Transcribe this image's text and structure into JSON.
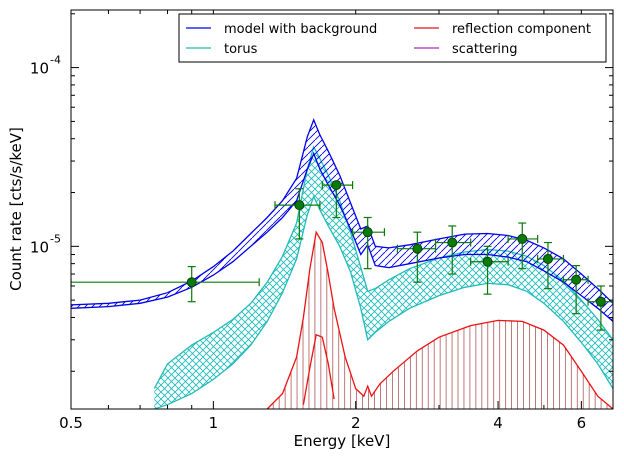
{
  "chart_data": {
    "type": "line",
    "title": "",
    "xlabel": "Energy [keV]",
    "ylabel": "Count rate [cts/s/keV]",
    "xscale": "log",
    "yscale": "log",
    "xlim": [
      0.5,
      7.0
    ],
    "ylim": [
      1.23e-06,
      0.00021
    ],
    "grid": false,
    "legend_position": "top-right",
    "x_ticks": [
      {
        "value": 0.5,
        "label": "0.5"
      },
      {
        "value": 1,
        "label": "1"
      },
      {
        "value": 2,
        "label": "2"
      },
      {
        "value": 4,
        "label": "4"
      },
      {
        "value": 6,
        "label": "6"
      }
    ],
    "y_ticks": [
      {
        "value": 1e-05,
        "label": "10",
        "exp": "-5"
      },
      {
        "value": 0.0001,
        "label": "10",
        "exp": "-4"
      }
    ],
    "legend": [
      {
        "label": "model with background",
        "color": "#0000ee"
      },
      {
        "label": "reflection component",
        "color": "#ee1111"
      },
      {
        "label": "torus",
        "color": "#22bbbb"
      },
      {
        "label": "scattering",
        "color": "#bb22bb"
      }
    ],
    "series": [
      {
        "name": "model with background",
        "color": "#0000ee",
        "x": [
          0.5,
          0.6,
          0.7,
          0.8,
          0.9,
          1.0,
          1.1,
          1.2,
          1.3,
          1.4,
          1.5,
          1.58,
          1.63,
          1.68,
          1.75,
          1.85,
          1.95,
          2.05,
          2.12,
          2.2,
          2.35,
          2.6,
          3.0,
          3.4,
          3.8,
          4.2,
          4.6,
          5.0,
          5.5,
          6.0,
          6.5,
          7.0
        ],
        "y_lo": [
          4.5e-06,
          4.6e-06,
          4.8e-06,
          5.2e-06,
          5.9e-06,
          6.9e-06,
          8.2e-06,
          1e-05,
          1.2e-05,
          1.45e-05,
          1.8e-05,
          2.7e-05,
          3.3e-05,
          2.7e-05,
          2.2e-05,
          1.7e-05,
          1.25e-05,
          9e-06,
          1.02e-05,
          7.8e-06,
          7.6e-06,
          8e-06,
          8.6e-06,
          9e-06,
          9e-06,
          8.7e-06,
          8.2e-06,
          7.3e-06,
          6.3e-06,
          5.3e-06,
          4.5e-06,
          3.8e-06
        ],
        "y_hi": [
          4.7e-06,
          4.8e-06,
          5e-06,
          5.5e-06,
          6.4e-06,
          7.7e-06,
          9.4e-06,
          1.18e-05,
          1.45e-05,
          1.8e-05,
          2.4e-05,
          4.1e-05,
          5.1e-05,
          4.2e-05,
          3.4e-05,
          2.5e-05,
          1.75e-05,
          1.25e-05,
          1.3e-05,
          1e-05,
          9.8e-06,
          1.02e-05,
          1.1e-05,
          1.17e-05,
          1.18e-05,
          1.15e-05,
          1.08e-05,
          9.8e-06,
          8.5e-06,
          7e-06,
          5.8e-06,
          4.8e-06
        ]
      },
      {
        "name": "torus",
        "color": "#22bbbb",
        "x": [
          0.75,
          0.8,
          0.9,
          1.0,
          1.1,
          1.2,
          1.3,
          1.4,
          1.5,
          1.58,
          1.63,
          1.68,
          1.75,
          1.85,
          1.95,
          2.05,
          2.12,
          2.2,
          2.35,
          2.6,
          3.0,
          3.4,
          3.8,
          4.2,
          4.6,
          5.0,
          5.5,
          6.0,
          6.5,
          7.0
        ],
        "y_lo": [
          1.23e-06,
          1.3e-06,
          1.5e-06,
          1.8e-06,
          2.2e-06,
          2.8e-06,
          3.8e-06,
          5.5e-06,
          8.5e-06,
          1.5e-05,
          1.9e-05,
          1.6e-05,
          1.3e-05,
          1e-05,
          7.2e-06,
          4.5e-06,
          3e-06,
          3.3e-06,
          3.8e-06,
          4.5e-06,
          5.3e-06,
          5.9e-06,
          6.2e-06,
          6.1e-06,
          5.6e-06,
          4.8e-06,
          3.8e-06,
          2.9e-06,
          2.2e-06,
          1.6e-06
        ],
        "y_hi": [
          1.6e-06,
          2.2e-06,
          2.8e-06,
          3.3e-06,
          3.9e-06,
          4.8e-06,
          6.3e-06,
          8.8e-06,
          1.35e-05,
          2.7e-05,
          3.6e-05,
          3.1e-05,
          2.5e-05,
          1.8e-05,
          1.2e-05,
          7.6e-06,
          5.6e-06,
          5.8e-06,
          6.5e-06,
          7.5e-06,
          8.6e-06,
          9.3e-06,
          9.6e-06,
          9.4e-06,
          8.8e-06,
          7.8e-06,
          6.4e-06,
          5e-06,
          3.9e-06,
          3e-06
        ]
      },
      {
        "name": "reflection component",
        "color": "#ee1111",
        "x": [
          1.3,
          1.4,
          1.5,
          1.55,
          1.6,
          1.65,
          1.7,
          1.75,
          1.8,
          1.9,
          2.0,
          2.08,
          2.12,
          2.16,
          2.25,
          2.4,
          2.7,
          3.0,
          3.5,
          4.0,
          4.5,
          5.0,
          5.5,
          6.0,
          6.5,
          7.0
        ],
        "y_lo": [
          null,
          null,
          null,
          1.3e-06,
          2.1e-06,
          3.2e-06,
          3.1e-06,
          2.2e-06,
          1.4e-06,
          null,
          null,
          null,
          null,
          null,
          null,
          null,
          null,
          null,
          null,
          null,
          null,
          null,
          null,
          null,
          null,
          null
        ],
        "y_hi": [
          1.23e-06,
          1.5e-06,
          2.4e-06,
          4e-06,
          7.5e-06,
          1.2e-05,
          1.05e-05,
          7e-06,
          4.5e-06,
          2.4e-06,
          1.6e-06,
          1.45e-06,
          1.65e-06,
          1.45e-06,
          1.7e-06,
          2e-06,
          2.6e-06,
          3.1e-06,
          3.6e-06,
          3.85e-06,
          3.8e-06,
          3.4e-06,
          2.8e-06,
          2e-06,
          1.45e-06,
          1.23e-06
        ]
      },
      {
        "name": "scattering",
        "color": "#bb22bb",
        "x": [],
        "y": []
      }
    ],
    "data_points": {
      "color": "#0a7a0a",
      "points": [
        {
          "x": 0.9,
          "y": 6.3e-06,
          "xerr": [
            0.5,
            1.25
          ],
          "yerr": [
            4.9e-06,
            7.7e-06
          ]
        },
        {
          "x": 1.52,
          "y": 1.7e-05,
          "xerr": [
            1.35,
            1.68
          ],
          "yerr": [
            1.1e-05,
            2.1e-05
          ]
        },
        {
          "x": 1.82,
          "y": 2.2e-05,
          "xerr": [
            1.7,
            1.97
          ],
          "yerr": [
            1.45e-05,
            2.3e-05
          ]
        },
        {
          "x": 2.12,
          "y": 1.2e-05,
          "xerr": [
            1.97,
            2.3
          ],
          "yerr": [
            7.5e-06,
            1.45e-05
          ]
        },
        {
          "x": 2.7,
          "y": 9.7e-06,
          "xerr": [
            2.45,
            2.95
          ],
          "yerr": [
            6.3e-06,
            1.2e-05
          ]
        },
        {
          "x": 3.2,
          "y": 1.05e-05,
          "xerr": [
            2.95,
            3.5
          ],
          "yerr": [
            7e-06,
            1.3e-05
          ]
        },
        {
          "x": 3.8,
          "y": 8.2e-06,
          "xerr": [
            3.5,
            4.2
          ],
          "yerr": [
            5.4e-06,
            1e-05
          ]
        },
        {
          "x": 4.5,
          "y": 1.1e-05,
          "xerr": [
            4.2,
            4.85
          ],
          "yerr": [
            7.5e-06,
            1.35e-05
          ]
        },
        {
          "x": 5.1,
          "y": 8.5e-06,
          "xerr": [
            4.85,
            5.5
          ],
          "yerr": [
            5.8e-06,
            1.05e-05
          ]
        },
        {
          "x": 5.85,
          "y": 6.5e-06,
          "xerr": [
            5.5,
            6.2
          ],
          "yerr": [
            4.2e-06,
            7.8e-06
          ]
        },
        {
          "x": 6.6,
          "y": 4.9e-06,
          "xerr": [
            6.2,
            7.0
          ],
          "yerr": [
            3.4e-06,
            6e-06
          ]
        }
      ]
    }
  }
}
